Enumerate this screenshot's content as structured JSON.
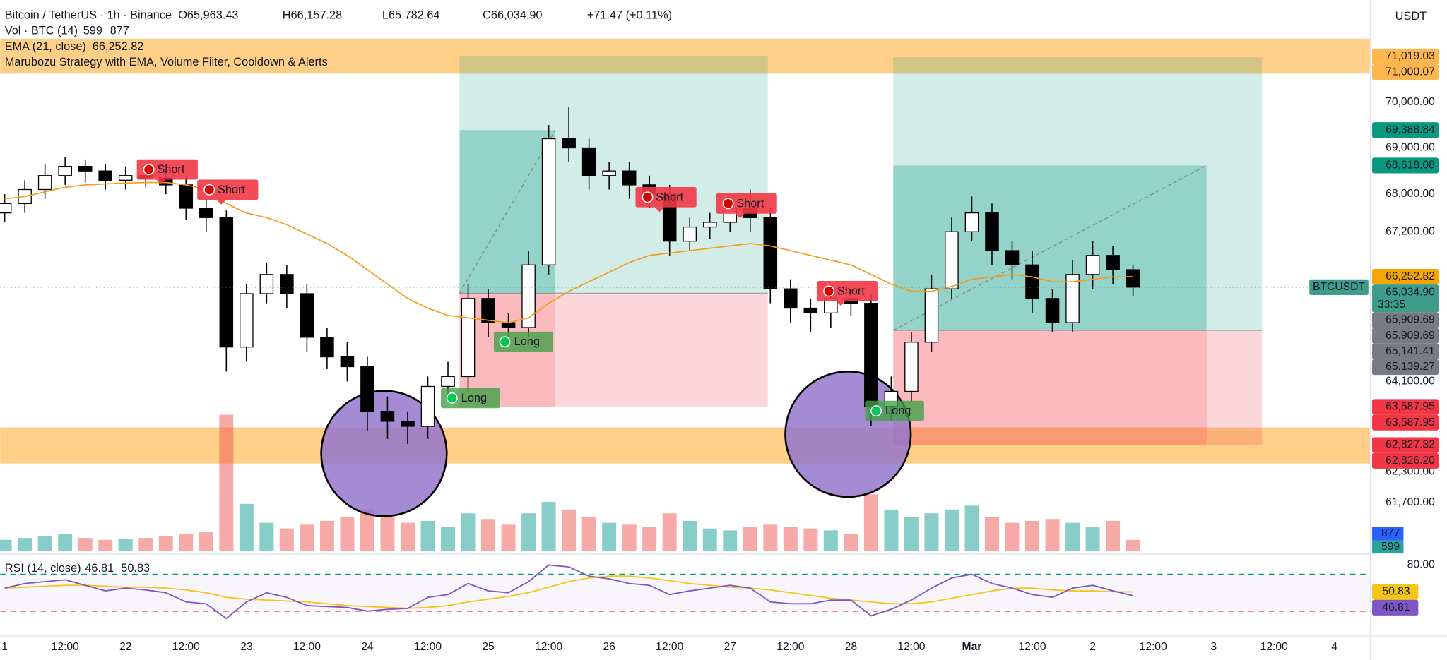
{
  "chart_data": {
    "type": "candlestick",
    "title": "Bitcoin / TetherUS · 1h · Binance",
    "ohlc_legend": [
      "O65,963.43",
      "H66,157.28",
      "L65,782.64",
      "C66,034.90",
      "+71.47 (+0.11%)"
    ],
    "currency": "USDT",
    "symbol_tag": "BTCUSDT",
    "strategy": "Marubozu Strategy with EMA, Volume Filter, Cooldown & Alerts",
    "log_scale": true,
    "grid": false,
    "up_color": "#ffffff",
    "down_color": "#000000",
    "x": [
      0,
      4,
      8,
      12,
      16,
      20,
      24,
      28,
      32,
      36,
      40,
      44,
      48,
      52,
      56,
      60,
      64,
      68,
      72,
      76,
      80,
      84,
      88,
      92,
      96,
      100,
      104,
      108,
      112,
      116,
      120,
      124,
      128,
      132,
      136,
      140,
      144,
      148,
      152,
      156,
      160,
      164,
      168,
      172,
      176,
      180,
      184,
      188,
      192,
      196,
      200,
      204,
      208,
      212,
      216,
      220,
      224
    ],
    "open": [
      67600,
      67800,
      68100,
      68400,
      68600,
      68500,
      68300,
      68400,
      68350,
      68200,
      67700,
      67500,
      64800,
      65900,
      66300,
      65900,
      65000,
      64600,
      64400,
      63500,
      63300,
      63200,
      64000,
      64200,
      65800,
      65300,
      65200,
      66500,
      69200,
      69000,
      68400,
      68500,
      68200,
      68000,
      67000,
      67300,
      67400,
      67700,
      67500,
      66000,
      65600,
      65500,
      65800,
      65700,
      63600,
      63900,
      64900,
      66000,
      67200,
      67600,
      66800,
      66500,
      65800,
      65300,
      66300,
      66700,
      66400
    ],
    "high": [
      68000,
      68300,
      68650,
      68800,
      68750,
      68650,
      68600,
      68550,
      68500,
      68400,
      67900,
      67650,
      66100,
      66550,
      66500,
      66100,
      65200,
      64900,
      64600,
      63800,
      63500,
      64200,
      64500,
      66100,
      66000,
      65500,
      66800,
      69500,
      69900,
      69200,
      68700,
      68700,
      68400,
      68200,
      67500,
      67600,
      67950,
      68100,
      67700,
      66200,
      65800,
      66000,
      66000,
      65900,
      64200,
      65100,
      66300,
      67500,
      67950,
      67800,
      67000,
      66800,
      66000,
      66600,
      67000,
      66900,
      66500
    ],
    "low": [
      67400,
      67600,
      67900,
      68200,
      68250,
      68100,
      68100,
      68150,
      68000,
      67450,
      67200,
      64300,
      64500,
      65700,
      65600,
      64700,
      64350,
      64100,
      63100,
      62950,
      62850,
      62950,
      63700,
      63900,
      65000,
      64900,
      65000,
      66300,
      68700,
      68100,
      68100,
      67900,
      67700,
      66700,
      66800,
      67050,
      67200,
      67200,
      65700,
      65300,
      65100,
      65200,
      65450,
      63200,
      63300,
      63700,
      64700,
      65800,
      67000,
      66500,
      66200,
      65500,
      65100,
      65100,
      66000,
      66100,
      65850
    ],
    "close": [
      67800,
      68100,
      68400,
      68600,
      68500,
      68300,
      68400,
      68350,
      68200,
      67700,
      67500,
      64800,
      65900,
      66300,
      65900,
      65000,
      64600,
      64400,
      63500,
      63300,
      63200,
      64000,
      64200,
      65800,
      65300,
      65200,
      66500,
      69200,
      69000,
      68400,
      68500,
      68200,
      68000,
      67000,
      67300,
      67400,
      67700,
      67500,
      66000,
      65600,
      65500,
      65800,
      65700,
      63600,
      63900,
      64900,
      66000,
      67200,
      67600,
      66800,
      66500,
      65800,
      65300,
      66300,
      66700,
      66400,
      66034.9
    ],
    "xlim": [
      -0.9,
      271.1
    ],
    "xticks": [
      {
        "value": 0,
        "label": "1"
      },
      {
        "value": 12,
        "label": "12:00"
      },
      {
        "value": 24,
        "label": "22"
      },
      {
        "value": 36,
        "label": "12:00"
      },
      {
        "value": 48,
        "label": "23"
      },
      {
        "value": 60,
        "label": "12:00"
      },
      {
        "value": 72,
        "label": "24"
      },
      {
        "value": 84,
        "label": "12:00"
      },
      {
        "value": 96,
        "label": "25"
      },
      {
        "value": 108,
        "label": "12:00"
      },
      {
        "value": 120,
        "label": "26"
      },
      {
        "value": 132,
        "label": "12:00"
      },
      {
        "value": 144,
        "label": "27"
      },
      {
        "value": 156,
        "label": "12:00"
      },
      {
        "value": 168,
        "label": "28"
      },
      {
        "value": 180,
        "label": "12:00"
      },
      {
        "value": 192,
        "label": "Mar"
      },
      {
        "value": 204,
        "label": "12:00"
      },
      {
        "value": 216,
        "label": "2"
      },
      {
        "value": 228,
        "label": "12:00"
      },
      {
        "value": 240,
        "label": "3"
      },
      {
        "value": 252,
        "label": "12:00"
      },
      {
        "value": 264,
        "label": "4"
      }
    ],
    "ylim": [
      60724,
      72294
    ],
    "yticks": [
      {
        "value": 70000,
        "label": "70,000.00"
      },
      {
        "value": 69000,
        "label": "69,000.00"
      },
      {
        "value": 68000,
        "label": "68,000.00"
      },
      {
        "value": 67200,
        "label": "67,200.00"
      },
      {
        "value": 64100,
        "label": "64,100.00"
      },
      {
        "value": 62300,
        "label": "62,300.00"
      },
      {
        "value": 61700,
        "label": "61,700.00"
      }
    ],
    "ema": {
      "name": "EMA (21, close)",
      "value_label": "66,252.82",
      "color": "#f59d1c",
      "values": [
        67900,
        67950,
        68050,
        68150,
        68200,
        68220,
        68240,
        68250,
        68250,
        68200,
        68100,
        67800,
        67600,
        67500,
        67350,
        67150,
        66950,
        66700,
        66400,
        66100,
        65800,
        65600,
        65450,
        65400,
        65350,
        65300,
        65400,
        65700,
        65950,
        66150,
        66350,
        66550,
        66700,
        66750,
        66800,
        66850,
        66900,
        66950,
        66900,
        66800,
        66700,
        66600,
        66500,
        66300,
        66100,
        65950,
        65950,
        66050,
        66200,
        66250,
        66300,
        66250,
        66150,
        66150,
        66200,
        66250,
        66252.82
      ]
    },
    "volume": {
      "name": "Vol · BTC (14)",
      "up_color": "rgba(38,166,154,0.55)",
      "down_color": "rgba(239,83,80,0.5)",
      "ma": 877,
      "ma_color": "#2962ff",
      "value_color": "#26a69a",
      "ylim": [
        0,
        10600
      ],
      "values": [
        600,
        700,
        800,
        900,
        700,
        600,
        650,
        700,
        800,
        900,
        1000,
        7200,
        2500,
        1500,
        1200,
        1400,
        1600,
        1800,
        2200,
        1800,
        1500,
        1600,
        1300,
        2000,
        1700,
        1400,
        2000,
        2600,
        2200,
        1800,
        1500,
        1400,
        1300,
        2000,
        1600,
        1200,
        1100,
        1300,
        1400,
        1300,
        1200,
        1100,
        900,
        3000,
        2200,
        1800,
        2000,
        2200,
        2400,
        1800,
        1500,
        1600,
        1700,
        1500,
        1300,
        1600,
        599
      ]
    },
    "zones": [
      {
        "top": 71417,
        "bottom": 70634,
        "color": "rgba(255,167,38,0.55)"
      },
      {
        "top": 63177,
        "bottom": 62463,
        "color": "rgba(255,167,38,0.55)"
      }
    ],
    "positions": [
      {
        "entry": 65909.69,
        "target": 71019.03,
        "stop": 63587.95,
        "reached": 69388.84,
        "x_start": 90.3,
        "x_end": 151.5,
        "x_reached": 109.3
      },
      {
        "entry": 65141.41,
        "target": 71000.07,
        "stop": 62827.32,
        "reached": 68618.08,
        "x_start": 176.4,
        "x_end": 249.6,
        "x_reached": 238.6
      }
    ],
    "signals": [
      {
        "label": "Short",
        "x": 31,
        "price": 68213
      },
      {
        "label": "Short",
        "x": 43,
        "price": 67779
      },
      {
        "label": "Short",
        "x": 130,
        "price": 67621
      },
      {
        "label": "Short",
        "x": 146,
        "price": 67484
      },
      {
        "label": "Short",
        "x": 166,
        "price": 65647
      },
      {
        "label": "Long",
        "x": 88.8,
        "price": 63767
      },
      {
        "label": "Long",
        "x": 99.3,
        "price": 64907
      },
      {
        "label": "Long",
        "x": 173,
        "price": 63508
      }
    ],
    "price_labels": [
      {
        "value": 71019.03,
        "label": "71,019.03",
        "color": "#ffb74d",
        "text_color": "#131722"
      },
      {
        "value": 71000.07,
        "label": "71,000.07",
        "color": "#ffb74d",
        "text_color": "#131722"
      },
      {
        "value": 69388.84,
        "label": "69,388.84",
        "color": "#089981",
        "text_color": "#ffffff"
      },
      {
        "value": 68618.08,
        "label": "68,618.08",
        "color": "#089981",
        "text_color": "#ffffff"
      },
      {
        "value": 66252.82,
        "label": "66,252.82",
        "color": "#f7a600",
        "text_color": "#131722"
      },
      {
        "value": 66034.9,
        "label": "66,034.90",
        "sub": "33:35",
        "color": "#3d9c8a",
        "text_color": "#ffffff"
      },
      {
        "value": 65909.69,
        "label": "65,909.69",
        "color": "#787b86",
        "text_color": "#ffffff"
      },
      {
        "value": 65909.69,
        "label": "65,909.69",
        "color": "#787b86",
        "text_color": "#ffffff"
      },
      {
        "value": 65141.41,
        "label": "65,141.41",
        "color": "#787b86",
        "text_color": "#ffffff"
      },
      {
        "value": 65139.27,
        "label": "65,139.27",
        "color": "#787b86",
        "text_color": "#ffffff"
      },
      {
        "value": 63587.95,
        "label": "63,587.95",
        "color": "#f23645",
        "text_color": "#ffffff"
      },
      {
        "value": 63587.95,
        "label": "63,587.95",
        "color": "#f23645",
        "text_color": "#ffffff"
      },
      {
        "value": 62827.32,
        "label": "62,827.32",
        "color": "#f23645",
        "text_color": "#ffffff"
      },
      {
        "value": 62826.2,
        "label": "62,826.20",
        "color": "#f23645",
        "text_color": "#ffffff"
      }
    ],
    "rsi": {
      "name": "RSI (14, close)",
      "color": "#7e57c2",
      "ma_color": "#f5c518",
      "ylim": [
        3,
        88
      ],
      "yticks": [
        {
          "value": 80,
          "label": "80.00"
        }
      ],
      "upper": 70,
      "lower": 30,
      "values": [
        55,
        60,
        62,
        64,
        58,
        52,
        55,
        53,
        50,
        40,
        38,
        22,
        40,
        50,
        45,
        36,
        35,
        34,
        30,
        32,
        33,
        45,
        48,
        60,
        52,
        50,
        62,
        80,
        78,
        68,
        65,
        60,
        58,
        48,
        52,
        55,
        58,
        55,
        40,
        38,
        38,
        42,
        42,
        25,
        32,
        42,
        55,
        66,
        70,
        60,
        55,
        48,
        45,
        55,
        58,
        52,
        46.81
      ],
      "ma_values": [
        55,
        56,
        57,
        58,
        58,
        57,
        56,
        56,
        55,
        53,
        50,
        45,
        43,
        42,
        41,
        40,
        38,
        36,
        35,
        34,
        33,
        34,
        36,
        40,
        43,
        46,
        50,
        56,
        62,
        66,
        68,
        68,
        66,
        63,
        60,
        58,
        56,
        55,
        53,
        50,
        47,
        44,
        42,
        40,
        38,
        38,
        40,
        44,
        48,
        52,
        55,
        55,
        53,
        52,
        52,
        51,
        50.83
      ]
    }
  }
}
